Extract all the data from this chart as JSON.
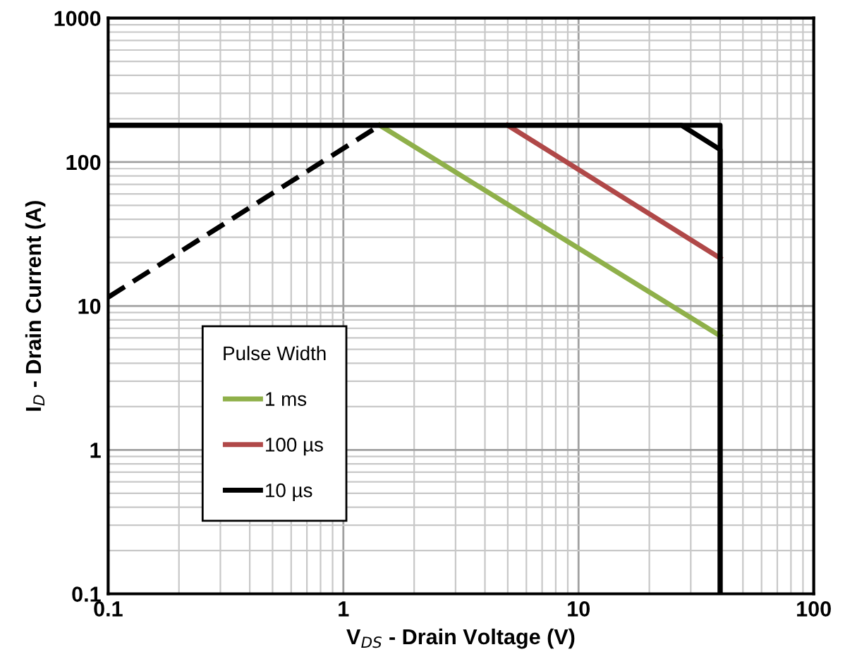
{
  "chart_data": {
    "type": "line",
    "xlabel": "V$_{DS}$ - Drain Voltage (V)",
    "ylabel": "I$_{D}$ - Drain Current (A)",
    "legend_title": "Pulse Width",
    "log": "xy",
    "xlim": [
      0.1,
      100
    ],
    "ylim": [
      0.1,
      1000
    ],
    "xticks": [
      0.1,
      1,
      10,
      100
    ],
    "yticks": [
      0.1,
      1,
      10,
      100,
      1000
    ],
    "grid": true,
    "legend": "bottom left",
    "marker": "none",
    "series": [
      {
        "name": "1 ms",
        "color": "#8fb04a",
        "x": [
          1.43,
          40
        ],
        "values": [
          180,
          6.2
        ]
      },
      {
        "name": "100 µs",
        "color": "#b04848",
        "x": [
          5,
          40
        ],
        "values": [
          180,
          21.5
        ]
      },
      {
        "name": "10 µs",
        "color": "#000000",
        "x": [
          0.1,
          27.4,
          40,
          40
        ],
        "values": [
          180,
          180,
          122,
          0.1
        ]
      },
      {
        "color": "#000000",
        "x": [
          0.1,
          40,
          40
        ],
        "values": [
          180,
          180,
          0.1
        ]
      },
      {
        "color": "#000000",
        "line_style": "dashed",
        "x": [
          0.1,
          1.43
        ],
        "values": [
          11.5,
          180
        ]
      }
    ]
  }
}
